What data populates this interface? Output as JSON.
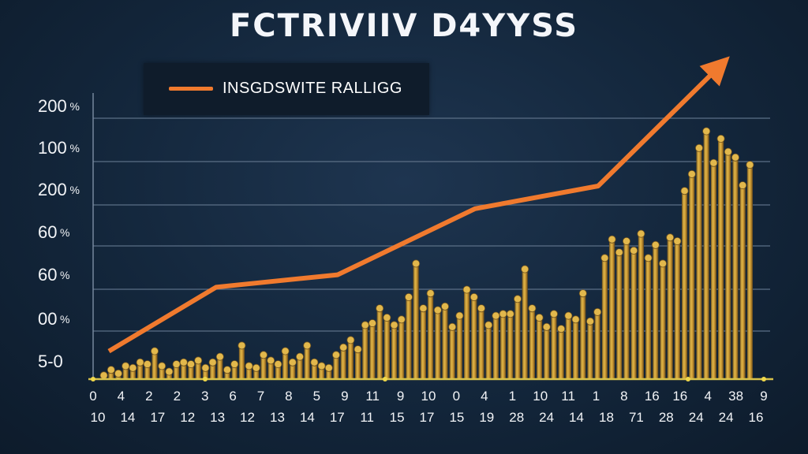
{
  "chart_data": {
    "type": "bar",
    "title": "FCTRIVIIV D4YYSS",
    "legend": {
      "label": "INSGDSWITE RALLIGG",
      "color": "#f07a2e",
      "placement": "top-left"
    },
    "y_tick_labels": [
      {
        "text": "200",
        "sym": "%"
      },
      {
        "text": "100",
        "sym": "%"
      },
      {
        "text": "200",
        "sym": "%"
      },
      {
        "text": "60",
        "sym": "%"
      },
      {
        "text": "60",
        "sym": "%"
      },
      {
        "text": "00",
        "sym": "%"
      },
      {
        "text": "5-0",
        "sym": ""
      }
    ],
    "x_tick_labels_top": [
      "0",
      "4",
      "2",
      "2",
      "3",
      "6",
      "7",
      "8",
      "5",
      "9",
      "11",
      "9",
      "10",
      "0",
      "4",
      "1",
      "10",
      "11",
      "1",
      "8",
      "16",
      "16",
      "4",
      "38",
      "9"
    ],
    "x_tick_labels_bottom": [
      "10",
      "14",
      "17",
      "12",
      "13",
      "12",
      "13",
      "14",
      "17",
      "11",
      "15",
      "17",
      "15",
      "19",
      "28",
      "24",
      "14",
      "18",
      "71",
      "28",
      "24",
      "24",
      "16"
    ],
    "bars": {
      "values": [
        0.2,
        0.5,
        0.3,
        0.7,
        0.6,
        0.9,
        0.8,
        1.5,
        0.7,
        0.4,
        0.8,
        0.9,
        0.8,
        1.0,
        0.6,
        0.9,
        1.2,
        0.5,
        0.8,
        1.8,
        0.7,
        0.6,
        1.3,
        1.0,
        0.8,
        1.5,
        0.9,
        1.2,
        1.8,
        0.9,
        0.7,
        0.6,
        1.3,
        1.7,
        2.1,
        1.6,
        2.9,
        3.0,
        3.8,
        3.3,
        2.9,
        3.2,
        4.4,
        6.2,
        3.8,
        4.6,
        3.7,
        3.9,
        2.8,
        3.4,
        4.8,
        4.4,
        3.8,
        2.9,
        3.4,
        3.5,
        3.5,
        4.3,
        5.9,
        3.8,
        3.3,
        2.8,
        3.5,
        2.7,
        3.4,
        3.2,
        4.6,
        3.1,
        3.6,
        6.5,
        7.5,
        6.8,
        7.4,
        6.9,
        7.8,
        6.5,
        7.2,
        6.2,
        7.6,
        7.4,
        10.1,
        11.0,
        12.4,
        13.3,
        11.6,
        12.9,
        12.2,
        11.9,
        10.4,
        11.5
      ],
      "y_range": [
        0,
        14
      ],
      "color": "#c9a13c"
    },
    "line": {
      "x": [
        0,
        1,
        2,
        3,
        4,
        5
      ],
      "values": [
        1.2,
        4.3,
        4.9,
        8.1,
        9.2,
        15.0
      ],
      "color": "#f07a2e"
    },
    "grid": true
  }
}
